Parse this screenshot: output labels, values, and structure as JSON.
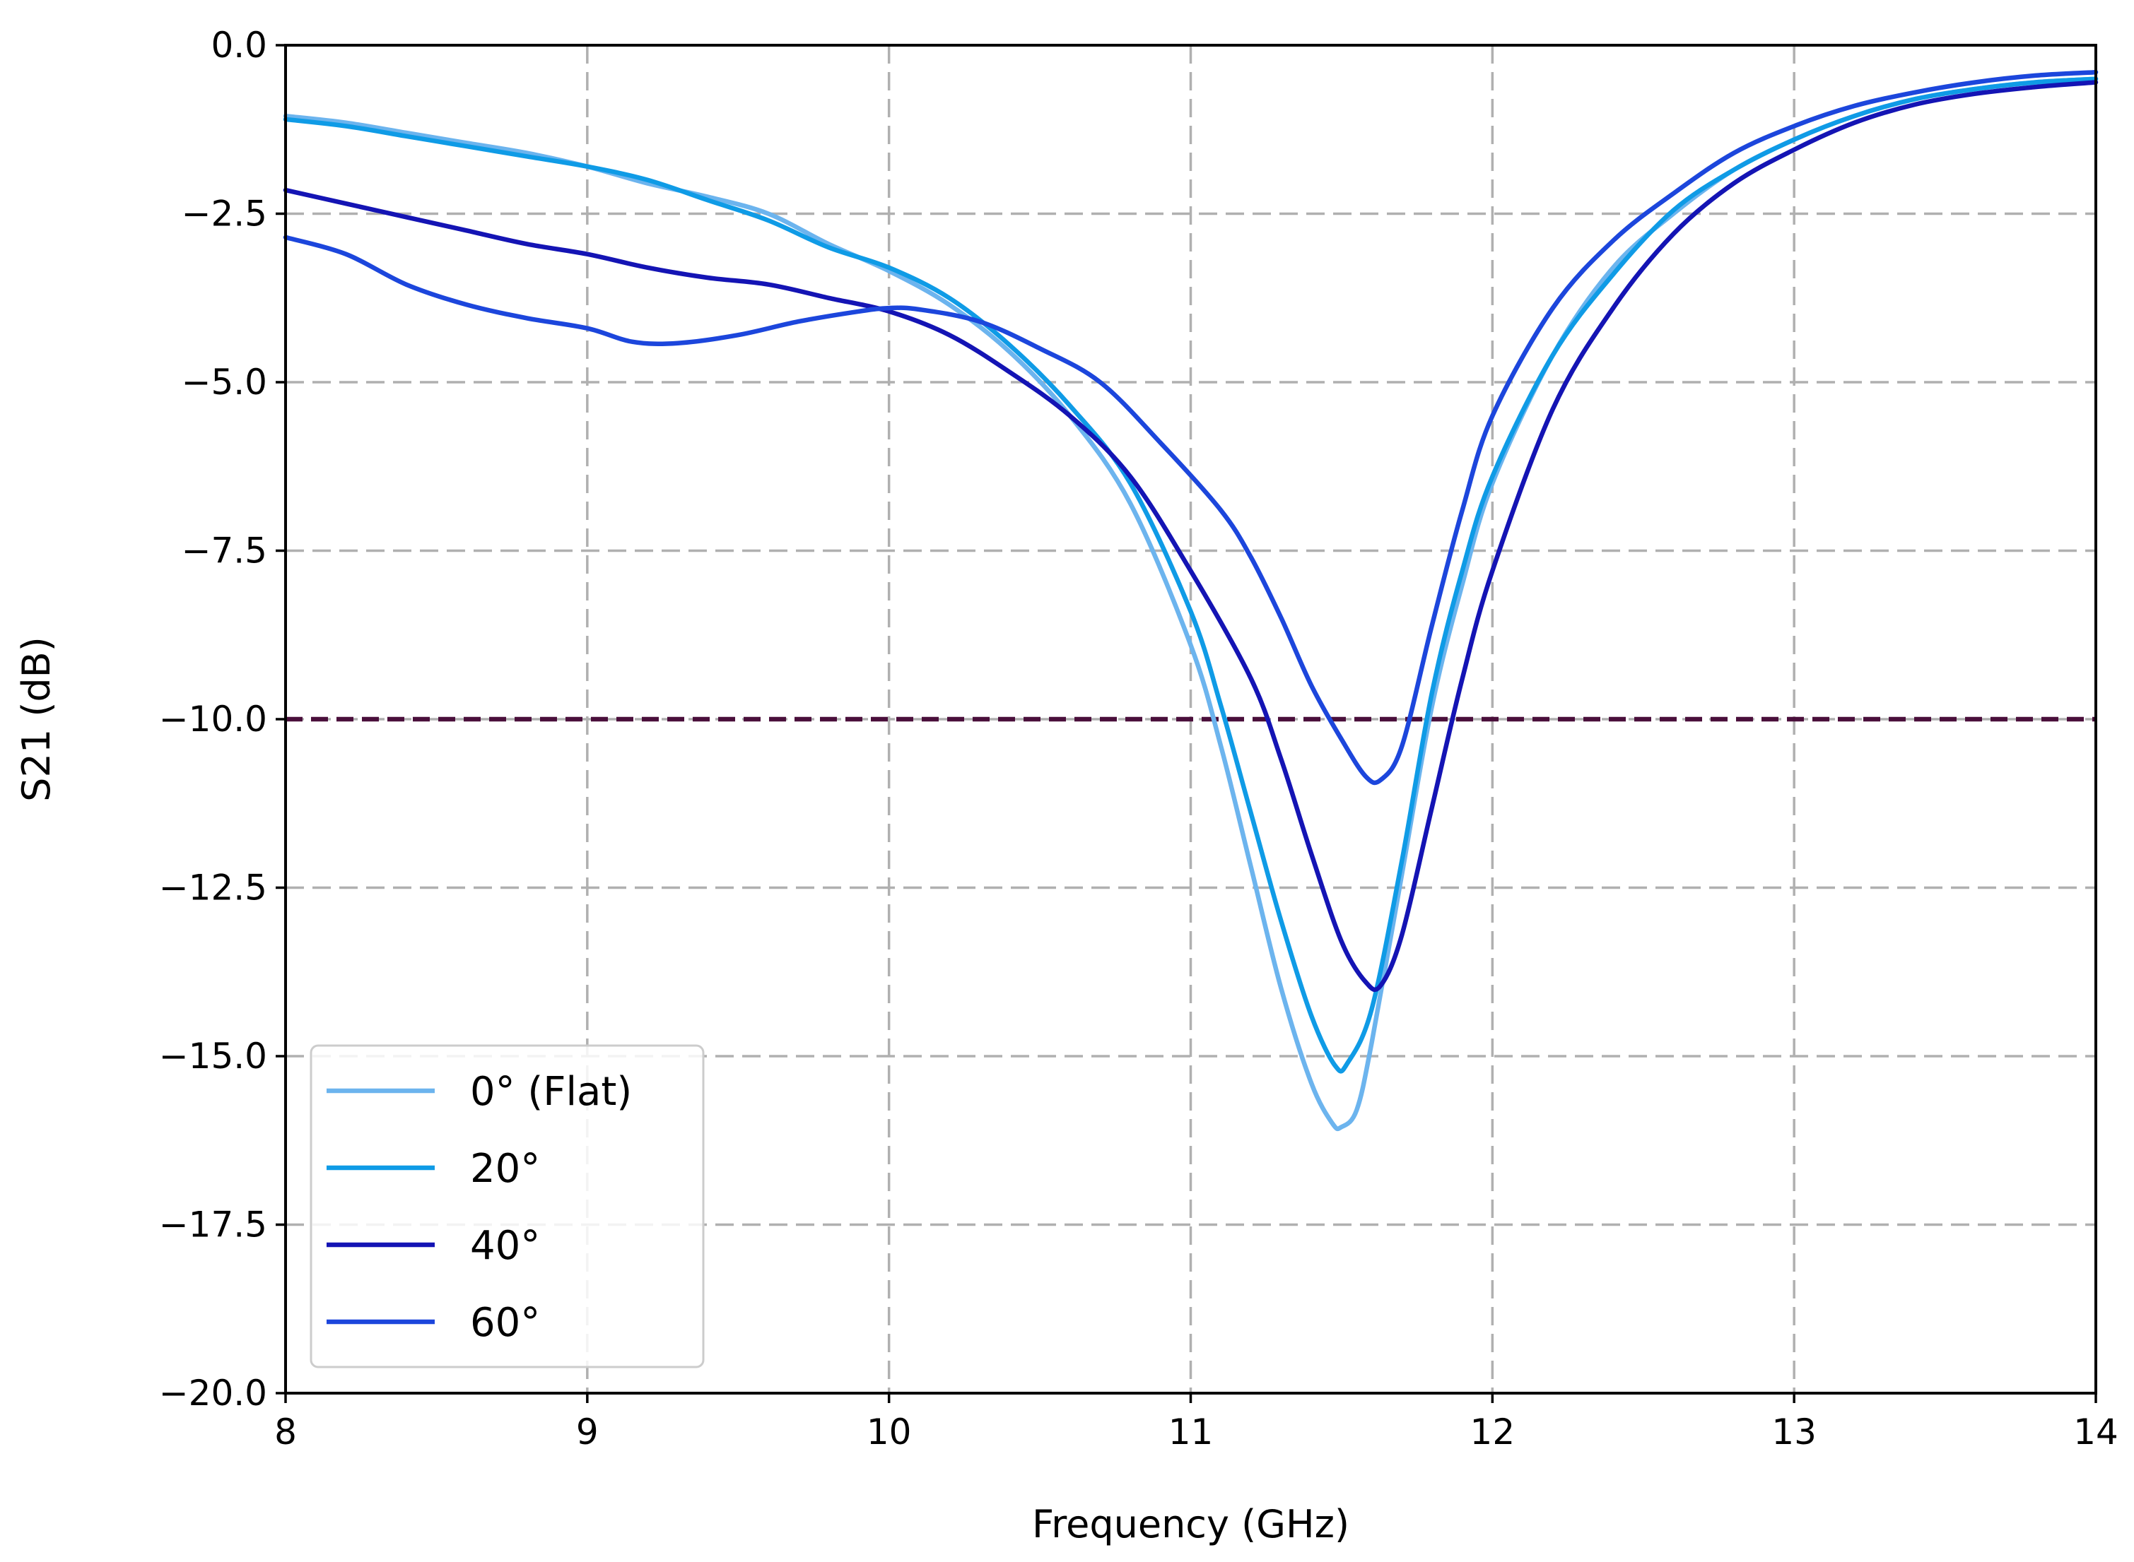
{
  "chart_data": {
    "type": "line",
    "title": "",
    "xlabel": "Frequency (GHz)",
    "ylabel": "S21 (dB)",
    "xlim": [
      8,
      14
    ],
    "ylim": [
      -20,
      0
    ],
    "grid": true,
    "legend_position": "bottom-left",
    "x_ticks": [
      "8",
      "9",
      "10",
      "11",
      "12",
      "13",
      "14"
    ],
    "y_ticks": [
      "0.0",
      "−2.5",
      "−5.0",
      "−7.5",
      "−10.0",
      "−12.5",
      "−15.0",
      "−17.5",
      "−20.0"
    ],
    "reference_line": {
      "y": -10,
      "color": "#4a0f3b",
      "style": "dashed"
    },
    "series": [
      {
        "name": "0° (Flat)",
        "color": "#6cb4ee",
        "points": [
          [
            8,
            -1.05
          ],
          [
            8.2,
            -1.15
          ],
          [
            8.4,
            -1.3
          ],
          [
            8.6,
            -1.45
          ],
          [
            8.8,
            -1.6
          ],
          [
            9.0,
            -1.8
          ],
          [
            9.2,
            -2.05
          ],
          [
            9.4,
            -2.25
          ],
          [
            9.6,
            -2.5
          ],
          [
            9.8,
            -2.95
          ],
          [
            10.0,
            -3.35
          ],
          [
            10.2,
            -3.85
          ],
          [
            10.4,
            -4.55
          ],
          [
            10.6,
            -5.5
          ],
          [
            10.8,
            -6.8
          ],
          [
            11.0,
            -8.9
          ],
          [
            11.1,
            -10.4
          ],
          [
            11.2,
            -12.2
          ],
          [
            11.3,
            -14.0
          ],
          [
            11.4,
            -15.4
          ],
          [
            11.47,
            -16.0
          ],
          [
            11.5,
            -16.05
          ],
          [
            11.55,
            -15.8
          ],
          [
            11.6,
            -14.8
          ],
          [
            11.7,
            -12.3
          ],
          [
            11.8,
            -9.8
          ],
          [
            11.9,
            -8.0
          ],
          [
            12.0,
            -6.5
          ],
          [
            12.2,
            -4.6
          ],
          [
            12.4,
            -3.3
          ],
          [
            12.6,
            -2.5
          ],
          [
            12.8,
            -1.85
          ],
          [
            13.0,
            -1.4
          ],
          [
            13.2,
            -1.05
          ],
          [
            13.4,
            -0.8
          ],
          [
            13.6,
            -0.65
          ],
          [
            13.8,
            -0.55
          ],
          [
            14.0,
            -0.5
          ]
        ]
      },
      {
        "name": "20°",
        "color": "#0f9be6",
        "points": [
          [
            8,
            -1.1
          ],
          [
            8.2,
            -1.2
          ],
          [
            8.4,
            -1.35
          ],
          [
            8.6,
            -1.5
          ],
          [
            8.8,
            -1.65
          ],
          [
            9.0,
            -1.8
          ],
          [
            9.2,
            -2.0
          ],
          [
            9.4,
            -2.3
          ],
          [
            9.6,
            -2.6
          ],
          [
            9.8,
            -3.0
          ],
          [
            10.0,
            -3.3
          ],
          [
            10.2,
            -3.75
          ],
          [
            10.4,
            -4.45
          ],
          [
            10.6,
            -5.35
          ],
          [
            10.8,
            -6.5
          ],
          [
            11.0,
            -8.4
          ],
          [
            11.1,
            -9.8
          ],
          [
            11.2,
            -11.4
          ],
          [
            11.3,
            -13.0
          ],
          [
            11.4,
            -14.4
          ],
          [
            11.48,
            -15.15
          ],
          [
            11.52,
            -15.1
          ],
          [
            11.6,
            -14.3
          ],
          [
            11.7,
            -12.1
          ],
          [
            11.8,
            -9.6
          ],
          [
            11.9,
            -7.8
          ],
          [
            12.0,
            -6.4
          ],
          [
            12.2,
            -4.6
          ],
          [
            12.4,
            -3.4
          ],
          [
            12.6,
            -2.45
          ],
          [
            12.8,
            -1.85
          ],
          [
            13.0,
            -1.4
          ],
          [
            13.2,
            -1.05
          ],
          [
            13.4,
            -0.8
          ],
          [
            13.6,
            -0.65
          ],
          [
            13.8,
            -0.55
          ],
          [
            14.0,
            -0.5
          ]
        ]
      },
      {
        "name": "40°",
        "color": "#1414b4",
        "points": [
          [
            8,
            -2.15
          ],
          [
            8.2,
            -2.35
          ],
          [
            8.4,
            -2.55
          ],
          [
            8.6,
            -2.75
          ],
          [
            8.8,
            -2.95
          ],
          [
            9.0,
            -3.1
          ],
          [
            9.2,
            -3.3
          ],
          [
            9.4,
            -3.45
          ],
          [
            9.6,
            -3.55
          ],
          [
            9.8,
            -3.75
          ],
          [
            10.0,
            -3.95
          ],
          [
            10.2,
            -4.3
          ],
          [
            10.4,
            -4.85
          ],
          [
            10.6,
            -5.5
          ],
          [
            10.8,
            -6.4
          ],
          [
            11.0,
            -7.8
          ],
          [
            11.2,
            -9.4
          ],
          [
            11.3,
            -10.6
          ],
          [
            11.4,
            -12.0
          ],
          [
            11.5,
            -13.3
          ],
          [
            11.58,
            -13.9
          ],
          [
            11.63,
            -13.95
          ],
          [
            11.7,
            -13.2
          ],
          [
            11.8,
            -11.3
          ],
          [
            11.9,
            -9.4
          ],
          [
            12.0,
            -7.8
          ],
          [
            12.2,
            -5.4
          ],
          [
            12.4,
            -3.9
          ],
          [
            12.6,
            -2.8
          ],
          [
            12.8,
            -2.05
          ],
          [
            13.0,
            -1.55
          ],
          [
            13.2,
            -1.15
          ],
          [
            13.4,
            -0.88
          ],
          [
            13.6,
            -0.72
          ],
          [
            13.8,
            -0.62
          ],
          [
            14.0,
            -0.55
          ]
        ]
      },
      {
        "name": "60°",
        "color": "#1c46dc",
        "points": [
          [
            8,
            -2.85
          ],
          [
            8.2,
            -3.1
          ],
          [
            8.4,
            -3.55
          ],
          [
            8.6,
            -3.85
          ],
          [
            8.8,
            -4.05
          ],
          [
            9.0,
            -4.2
          ],
          [
            9.15,
            -4.4
          ],
          [
            9.3,
            -4.42
          ],
          [
            9.5,
            -4.3
          ],
          [
            9.7,
            -4.1
          ],
          [
            9.9,
            -3.95
          ],
          [
            10.0,
            -3.9
          ],
          [
            10.1,
            -3.92
          ],
          [
            10.3,
            -4.1
          ],
          [
            10.5,
            -4.5
          ],
          [
            10.7,
            -5.0
          ],
          [
            10.9,
            -5.9
          ],
          [
            11.1,
            -6.9
          ],
          [
            11.2,
            -7.6
          ],
          [
            11.3,
            -8.5
          ],
          [
            11.4,
            -9.5
          ],
          [
            11.5,
            -10.3
          ],
          [
            11.58,
            -10.85
          ],
          [
            11.63,
            -10.9
          ],
          [
            11.7,
            -10.4
          ],
          [
            11.8,
            -8.6
          ],
          [
            11.9,
            -6.9
          ],
          [
            12.0,
            -5.5
          ],
          [
            12.2,
            -3.9
          ],
          [
            12.4,
            -2.9
          ],
          [
            12.6,
            -2.2
          ],
          [
            12.8,
            -1.6
          ],
          [
            13.0,
            -1.2
          ],
          [
            13.2,
            -0.9
          ],
          [
            13.4,
            -0.7
          ],
          [
            13.6,
            -0.55
          ],
          [
            13.8,
            -0.45
          ],
          [
            14.0,
            -0.4
          ]
        ]
      }
    ]
  }
}
